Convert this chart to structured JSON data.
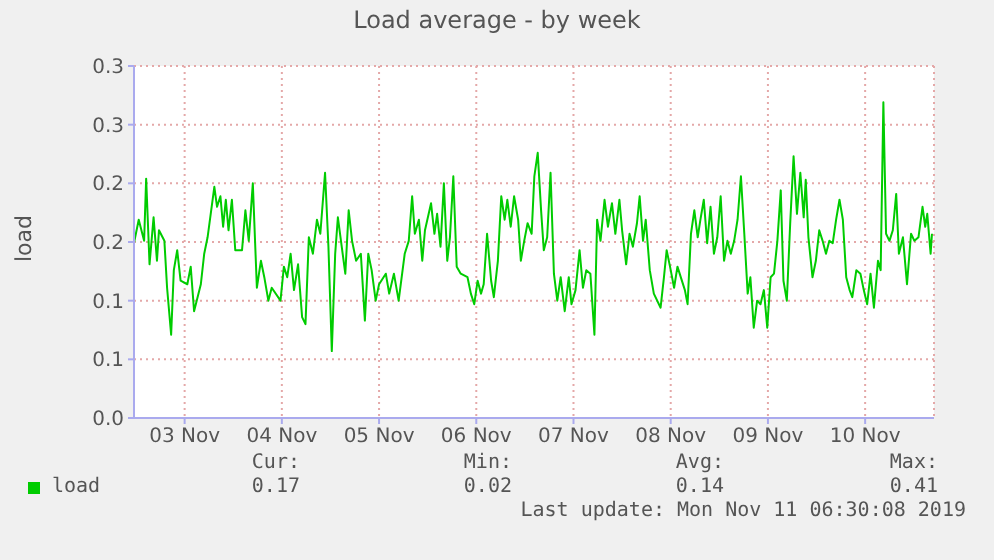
{
  "chart_data": {
    "type": "line",
    "title": "Load average - by week",
    "ylabel": "load",
    "legend": "bottom left",
    "grid": true,
    "line_style": "solid",
    "marker": "none",
    "xlim": [
      "2019-11-02T23:30",
      "2019-11-11T05:00"
    ],
    "xticks": [
      {
        "value": "2019-11-03T12:00",
        "label": "03 Nov"
      },
      {
        "value": "2019-11-04T12:00",
        "label": "04 Nov"
      },
      {
        "value": "2019-11-05T12:00",
        "label": "05 Nov"
      },
      {
        "value": "2019-11-06T12:00",
        "label": "06 Nov"
      },
      {
        "value": "2019-11-07T12:00",
        "label": "07 Nov"
      },
      {
        "value": "2019-11-08T12:00",
        "label": "08 Nov"
      },
      {
        "value": "2019-11-09T12:00",
        "label": "09 Nov"
      },
      {
        "value": "2019-11-10T12:00",
        "label": "10 Nov"
      }
    ],
    "ylim": [
      0,
      0.3
    ],
    "yticks": [
      {
        "value": 0,
        "label": "0.0"
      },
      {
        "value": 0.05,
        "label": "0.1"
      },
      {
        "value": 0.1,
        "label": "0.1"
      },
      {
        "value": 0.15,
        "label": "0.2"
      },
      {
        "value": 0.2,
        "label": "0.2"
      },
      {
        "value": 0.25,
        "label": "0.3"
      },
      {
        "value": 0.3,
        "label": "0.3"
      }
    ],
    "annotations": [
      "Cur:",
      "Min:",
      "Avg:",
      "Max:",
      "0.17",
      "0.02",
      "0.14",
      "0.41",
      "Last update: Mon Nov 11 06:30:08 2019"
    ],
    "series": [
      {
        "name": "load",
        "color": "#00cc00",
        "x": [
          "2019-11-02T23:30",
          "2019-11-03T00:40",
          "2019-11-03T02:00",
          "2019-11-03T02:30",
          "2019-11-03T03:20",
          "2019-11-03T04:20",
          "2019-11-03T05:10",
          "2019-11-03T05:40",
          "2019-11-03T07:00",
          "2019-11-03T07:40",
          "2019-11-03T08:40",
          "2019-11-03T09:20",
          "2019-11-03T10:10",
          "2019-11-03T11:00",
          "2019-11-03T12:40",
          "2019-11-03T13:30",
          "2019-11-03T14:20",
          "2019-11-03T16:00",
          "2019-11-03T16:50",
          "2019-11-03T17:40",
          "2019-11-03T19:20",
          "2019-11-03T20:00",
          "2019-11-03T20:50",
          "2019-11-03T21:30",
          "2019-11-03T22:10",
          "2019-11-03T22:50",
          "2019-11-03T23:40",
          "2019-11-04T00:30",
          "2019-11-04T02:10",
          "2019-11-04T03:00",
          "2019-11-04T03:50",
          "2019-11-04T04:50",
          "2019-11-04T05:50",
          "2019-11-04T06:50",
          "2019-11-04T07:40",
          "2019-11-04T08:40",
          "2019-11-04T09:30",
          "2019-11-04T11:40",
          "2019-11-04T12:30",
          "2019-11-04T13:20",
          "2019-11-04T14:10",
          "2019-11-04T15:00",
          "2019-11-04T16:00",
          "2019-11-04T17:00",
          "2019-11-04T17:50",
          "2019-11-04T18:40",
          "2019-11-04T19:40",
          "2019-11-04T20:40",
          "2019-11-04T21:30",
          "2019-11-04T22:40",
          "2019-11-04T23:30",
          "2019-11-05T00:20",
          "2019-11-05T01:10",
          "2019-11-05T01:50",
          "2019-11-05T02:40",
          "2019-11-05T03:40",
          "2019-11-05T04:30",
          "2019-11-05T05:20",
          "2019-11-05T06:20",
          "2019-11-05T07:30",
          "2019-11-05T08:30",
          "2019-11-05T09:20",
          "2019-11-05T10:10",
          "2019-11-05T11:10",
          "2019-11-05T12:00",
          "2019-11-05T13:40",
          "2019-11-05T14:30",
          "2019-11-05T15:40",
          "2019-11-05T16:50",
          "2019-11-05T18:20",
          "2019-11-05T19:20",
          "2019-11-05T20:10",
          "2019-11-05T20:50",
          "2019-11-05T21:50",
          "2019-11-05T22:40",
          "2019-11-05T23:20",
          "2019-11-06T00:50",
          "2019-11-06T01:40",
          "2019-11-06T02:20",
          "2019-11-06T03:10",
          "2019-11-06T04:00",
          "2019-11-06T04:50",
          "2019-11-06T05:30",
          "2019-11-06T06:20",
          "2019-11-06T07:10",
          "2019-11-06T08:10",
          "2019-11-06T09:50",
          "2019-11-06T10:40",
          "2019-11-06T11:30",
          "2019-11-06T12:20",
          "2019-11-06T13:10",
          "2019-11-06T13:50",
          "2019-11-06T14:40",
          "2019-11-06T15:40",
          "2019-11-06T16:20",
          "2019-11-06T17:20",
          "2019-11-06T18:10",
          "2019-11-06T19:00",
          "2019-11-06T19:40",
          "2019-11-06T20:30",
          "2019-11-06T21:20",
          "2019-11-06T22:20",
          "2019-11-06T23:00",
          "2019-11-06T23:50",
          "2019-11-07T00:40",
          "2019-11-07T01:40",
          "2019-11-07T02:20",
          "2019-11-07T03:10",
          "2019-11-07T04:00",
          "2019-11-07T04:40",
          "2019-11-07T05:30",
          "2019-11-07T06:20",
          "2019-11-07T07:10",
          "2019-11-07T08:00",
          "2019-11-07T08:50",
          "2019-11-07T09:50",
          "2019-11-07T10:50",
          "2019-11-07T11:30",
          "2019-11-07T12:30",
          "2019-11-07T13:30",
          "2019-11-07T14:20",
          "2019-11-07T15:10",
          "2019-11-07T16:10",
          "2019-11-07T17:10",
          "2019-11-07T17:50",
          "2019-11-07T18:40",
          "2019-11-07T19:40",
          "2019-11-07T20:30",
          "2019-11-07T21:30",
          "2019-11-07T22:20",
          "2019-11-07T23:20",
          "2019-11-08T00:00",
          "2019-11-08T01:00",
          "2019-11-08T01:50",
          "2019-11-08T02:40",
          "2019-11-08T03:40",
          "2019-11-08T04:20",
          "2019-11-08T05:10",
          "2019-11-08T05:50",
          "2019-11-08T06:50",
          "2019-11-08T07:50",
          "2019-11-08T09:30",
          "2019-11-08T10:20",
          "2019-11-08T11:00",
          "2019-11-08T11:50",
          "2019-11-08T12:50",
          "2019-11-08T13:40",
          "2019-11-08T15:30",
          "2019-11-08T16:10",
          "2019-11-08T17:00",
          "2019-11-08T17:50",
          "2019-11-08T18:40",
          "2019-11-08T19:20",
          "2019-11-08T20:10",
          "2019-11-08T21:00",
          "2019-11-08T21:50",
          "2019-11-08T22:40",
          "2019-11-08T23:30",
          "2019-11-09T00:20",
          "2019-11-09T01:10",
          "2019-11-09T02:00",
          "2019-11-09T02:50",
          "2019-11-09T03:40",
          "2019-11-09T04:30",
          "2019-11-09T05:20",
          "2019-11-09T06:10",
          "2019-11-09T07:00",
          "2019-11-09T07:40",
          "2019-11-09T08:30",
          "2019-11-09T09:20",
          "2019-11-09T10:10",
          "2019-11-09T11:00",
          "2019-11-09T11:50",
          "2019-11-09T12:40",
          "2019-11-09T13:30",
          "2019-11-09T14:20",
          "2019-11-09T15:10",
          "2019-11-09T15:50",
          "2019-11-09T16:40",
          "2019-11-09T17:30",
          "2019-11-09T18:20",
          "2019-11-09T19:10",
          "2019-11-09T20:00",
          "2019-11-09T20:50",
          "2019-11-09T21:20",
          "2019-11-09T22:00",
          "2019-11-09T23:00",
          "2019-11-09T23:50",
          "2019-11-10T00:40",
          "2019-11-10T01:30",
          "2019-11-10T02:20",
          "2019-11-10T03:10",
          "2019-11-10T04:00",
          "2019-11-10T04:50",
          "2019-11-10T05:40",
          "2019-11-10T06:30",
          "2019-11-10T07:20",
          "2019-11-10T08:10",
          "2019-11-10T08:50",
          "2019-11-10T09:50",
          "2019-11-10T10:50",
          "2019-11-10T11:40",
          "2019-11-10T12:30",
          "2019-11-10T13:20",
          "2019-11-10T14:10",
          "2019-11-10T15:10",
          "2019-11-10T15:50",
          "2019-11-10T16:30",
          "2019-11-10T17:10",
          "2019-11-10T18:00",
          "2019-11-10T18:50",
          "2019-11-10T19:40",
          "2019-11-10T20:20",
          "2019-11-10T21:20",
          "2019-11-10T22:20",
          "2019-11-10T23:20",
          "2019-11-11T00:10",
          "2019-11-11T01:10",
          "2019-11-11T02:10",
          "2019-11-11T02:50",
          "2019-11-11T03:20",
          "2019-11-11T04:10",
          "2019-11-11T04:30"
        ],
        "values": [
          0.149,
          0.169,
          0.151,
          0.204,
          0.131,
          0.171,
          0.134,
          0.16,
          0.151,
          0.111,
          0.071,
          0.126,
          0.143,
          0.117,
          0.114,
          0.129,
          0.091,
          0.114,
          0.14,
          0.154,
          0.197,
          0.18,
          0.189,
          0.163,
          0.186,
          0.16,
          0.186,
          0.143,
          0.143,
          0.177,
          0.151,
          0.2,
          0.111,
          0.134,
          0.12,
          0.1,
          0.111,
          0.1,
          0.129,
          0.12,
          0.14,
          0.109,
          0.131,
          0.086,
          0.08,
          0.154,
          0.14,
          0.169,
          0.157,
          0.209,
          0.146,
          0.057,
          0.14,
          0.171,
          0.149,
          0.123,
          0.177,
          0.151,
          0.134,
          0.14,
          0.083,
          0.14,
          0.126,
          0.1,
          0.114,
          0.123,
          0.106,
          0.123,
          0.1,
          0.14,
          0.151,
          0.189,
          0.157,
          0.169,
          0.134,
          0.16,
          0.183,
          0.157,
          0.174,
          0.146,
          0.2,
          0.134,
          0.154,
          0.206,
          0.129,
          0.123,
          0.12,
          0.106,
          0.097,
          0.117,
          0.106,
          0.114,
          0.157,
          0.117,
          0.103,
          0.134,
          0.189,
          0.169,
          0.186,
          0.163,
          0.189,
          0.169,
          0.134,
          0.151,
          0.166,
          0.157,
          0.206,
          0.226,
          0.177,
          0.143,
          0.154,
          0.209,
          0.123,
          0.1,
          0.12,
          0.091,
          0.12,
          0.097,
          0.109,
          0.143,
          0.111,
          0.126,
          0.123,
          0.071,
          0.169,
          0.151,
          0.186,
          0.163,
          0.183,
          0.157,
          0.186,
          0.16,
          0.131,
          0.157,
          0.146,
          0.166,
          0.189,
          0.151,
          0.169,
          0.126,
          0.106,
          0.094,
          0.12,
          0.143,
          0.129,
          0.111,
          0.129,
          0.109,
          0.097,
          0.157,
          0.177,
          0.154,
          0.169,
          0.186,
          0.149,
          0.18,
          0.14,
          0.154,
          0.189,
          0.134,
          0.151,
          0.14,
          0.151,
          0.169,
          0.206,
          0.157,
          0.106,
          0.12,
          0.077,
          0.1,
          0.097,
          0.109,
          0.077,
          0.12,
          0.123,
          0.151,
          0.194,
          0.117,
          0.1,
          0.166,
          0.223,
          0.174,
          0.209,
          0.171,
          0.203,
          0.154,
          0.12,
          0.134,
          0.16,
          0.151,
          0.14,
          0.151,
          0.149,
          0.169,
          0.186,
          0.169,
          0.12,
          0.109,
          0.103,
          0.126,
          0.123,
          0.109,
          0.097,
          0.123,
          0.094,
          0.134,
          0.126,
          0.269,
          0.157,
          0.151,
          0.16,
          0.191,
          0.14,
          0.154,
          0.114,
          0.157,
          0.151,
          0.154,
          0.18,
          0.163,
          0.174,
          0.14,
          0.157
        ]
      }
    ]
  }
}
